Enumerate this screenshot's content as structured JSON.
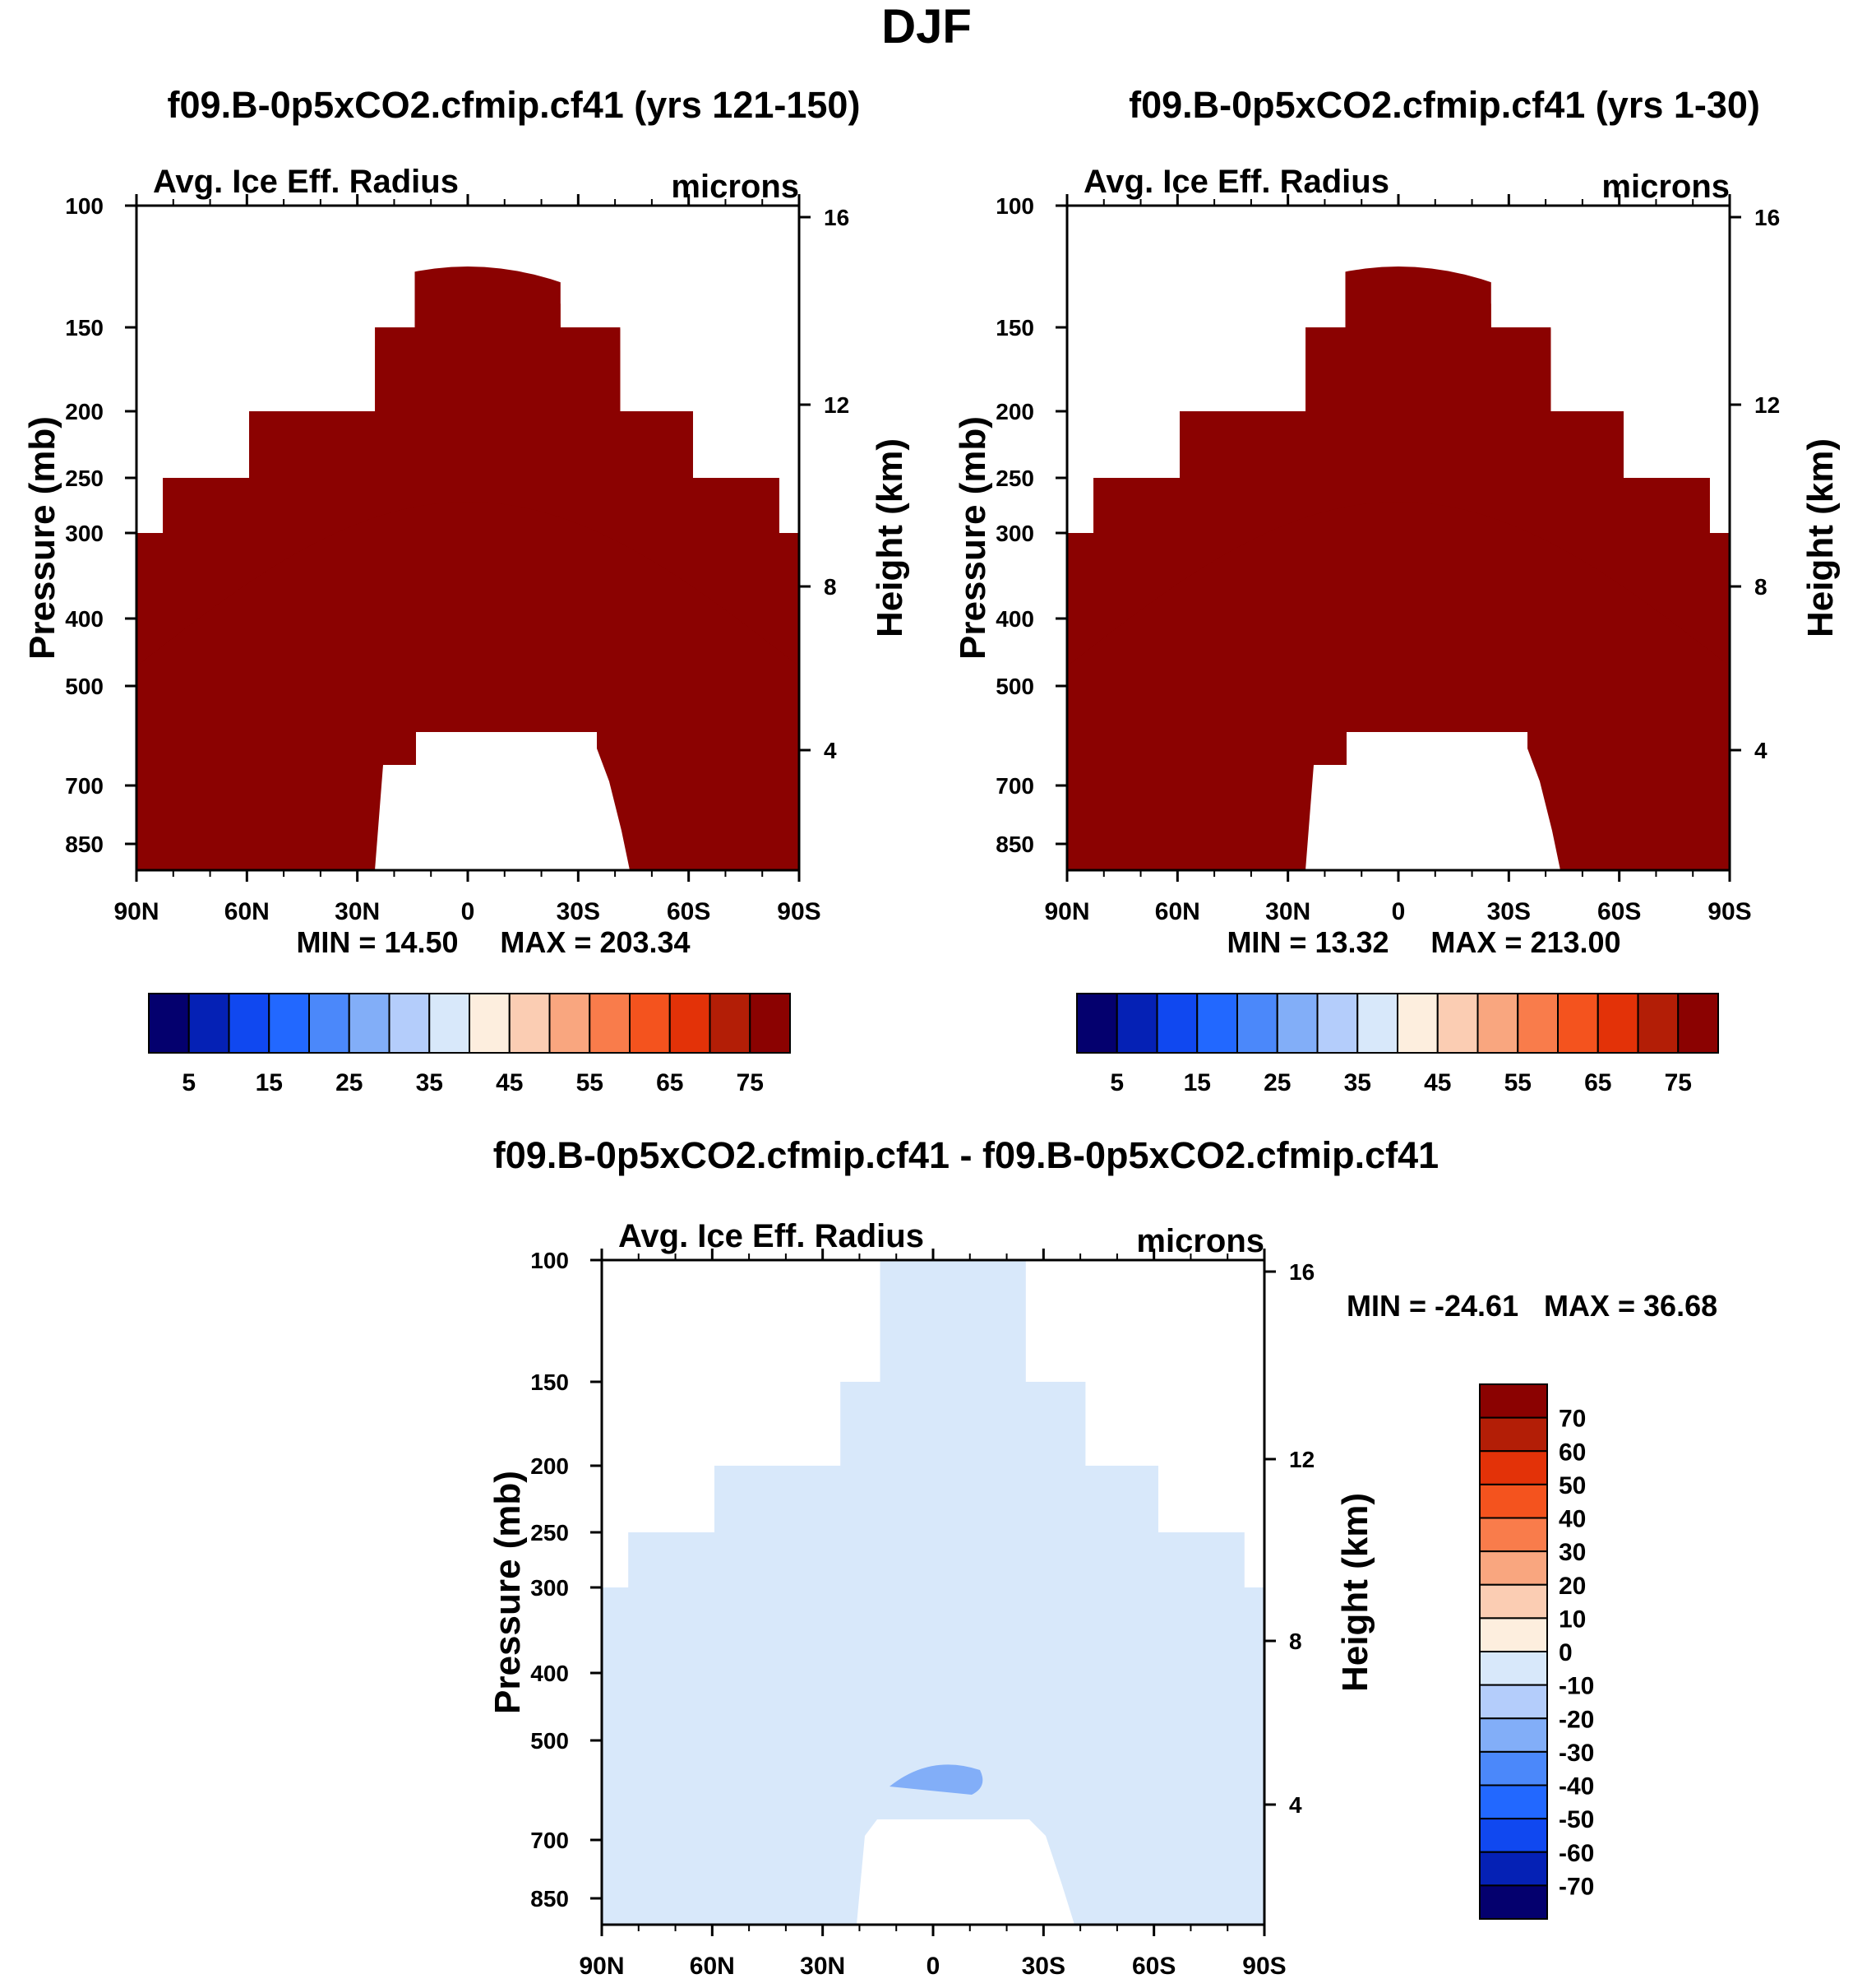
{
  "page_title": "DJF",
  "chart_data": [
    {
      "type": "heatmap",
      "title": "f09.B-0p5xCO2.cfmip.cf41 (yrs 121-150)",
      "variable": "Avg. Ice Eff. Radius",
      "units": "microns",
      "xlabel": "",
      "ylabel": "Pressure (mb)",
      "ylabel_right": "Height (km)",
      "x_ticks": [
        "90N",
        "60N",
        "30N",
        "0",
        "30S",
        "60S",
        "90S"
      ],
      "y_ticks": [
        100,
        150,
        200,
        250,
        300,
        400,
        500,
        700,
        850
      ],
      "y_right_ticks": [
        16,
        12,
        8,
        4
      ],
      "min_label": "MIN =  14.50",
      "max_label": "MAX = 203.34",
      "colorbar_labels": [
        "5",
        "15",
        "25",
        "35",
        "45",
        "55",
        "65",
        "75"
      ],
      "colorbar_colors": [
        "#04006e",
        "#0521b5",
        "#1048f0",
        "#2268ff",
        "#4b88fa",
        "#82aef8",
        "#b4cdfb",
        "#d8e8fa",
        "#fdeede",
        "#fbcdb3",
        "#f9a67f",
        "#f97c4b",
        "#f4531e",
        "#e33208",
        "#b31e06",
        "#8b0201"
      ],
      "levels": [
        0,
        5,
        10,
        15,
        20,
        25,
        30,
        35,
        40,
        45,
        50,
        55,
        60,
        65,
        70,
        75
      ]
    },
    {
      "type": "heatmap",
      "title": "f09.B-0p5xCO2.cfmip.cf41 (yrs 1-30)",
      "variable": "Avg. Ice Eff. Radius",
      "units": "microns",
      "xlabel": "",
      "ylabel": "Pressure (mb)",
      "ylabel_right": "Height (km)",
      "x_ticks": [
        "90N",
        "60N",
        "30N",
        "0",
        "30S",
        "60S",
        "90S"
      ],
      "y_ticks": [
        100,
        150,
        200,
        250,
        300,
        400,
        500,
        700,
        850
      ],
      "y_right_ticks": [
        16,
        12,
        8,
        4
      ],
      "min_label": "MIN =  13.32",
      "max_label": "MAX = 213.00",
      "colorbar_labels": [
        "5",
        "15",
        "25",
        "35",
        "45",
        "55",
        "65",
        "75"
      ],
      "colorbar_colors": [
        "#04006e",
        "#0521b5",
        "#1048f0",
        "#2268ff",
        "#4b88fa",
        "#82aef8",
        "#b4cdfb",
        "#d8e8fa",
        "#fdeede",
        "#fbcdb3",
        "#f9a67f",
        "#f97c4b",
        "#f4531e",
        "#e33208",
        "#b31e06",
        "#8b0201"
      ]
    },
    {
      "type": "heatmap",
      "title": "f09.B-0p5xCO2.cfmip.cf41 - f09.B-0p5xCO2.cfmip.cf41",
      "variable": "Avg. Ice Eff. Radius",
      "units": "microns",
      "xlabel": "",
      "ylabel": "Pressure (mb)",
      "ylabel_right": "Height (km)",
      "x_ticks": [
        "90N",
        "60N",
        "30N",
        "0",
        "30S",
        "60S",
        "90S"
      ],
      "y_ticks": [
        100,
        150,
        200,
        250,
        300,
        400,
        500,
        700,
        850
      ],
      "y_right_ticks": [
        16,
        12,
        8,
        4
      ],
      "min_label": "MIN = -24.61",
      "max_label": "MAX =  36.68",
      "colorbar_labels": [
        "70",
        "60",
        "50",
        "40",
        "30",
        "20",
        "10",
        "0",
        "-10",
        "-20",
        "-30",
        "-40",
        "-50",
        "-60",
        "-70"
      ],
      "colorbar_colors": [
        "#8b0201",
        "#b31e06",
        "#e33208",
        "#f4531e",
        "#f97c4b",
        "#f9a67f",
        "#fbcdb3",
        "#fdeede",
        "#d8e8fa",
        "#b4cdfb",
        "#82aef8",
        "#4b88fa",
        "#2268ff",
        "#1048f0",
        "#0521b5",
        "#04006e"
      ]
    }
  ]
}
